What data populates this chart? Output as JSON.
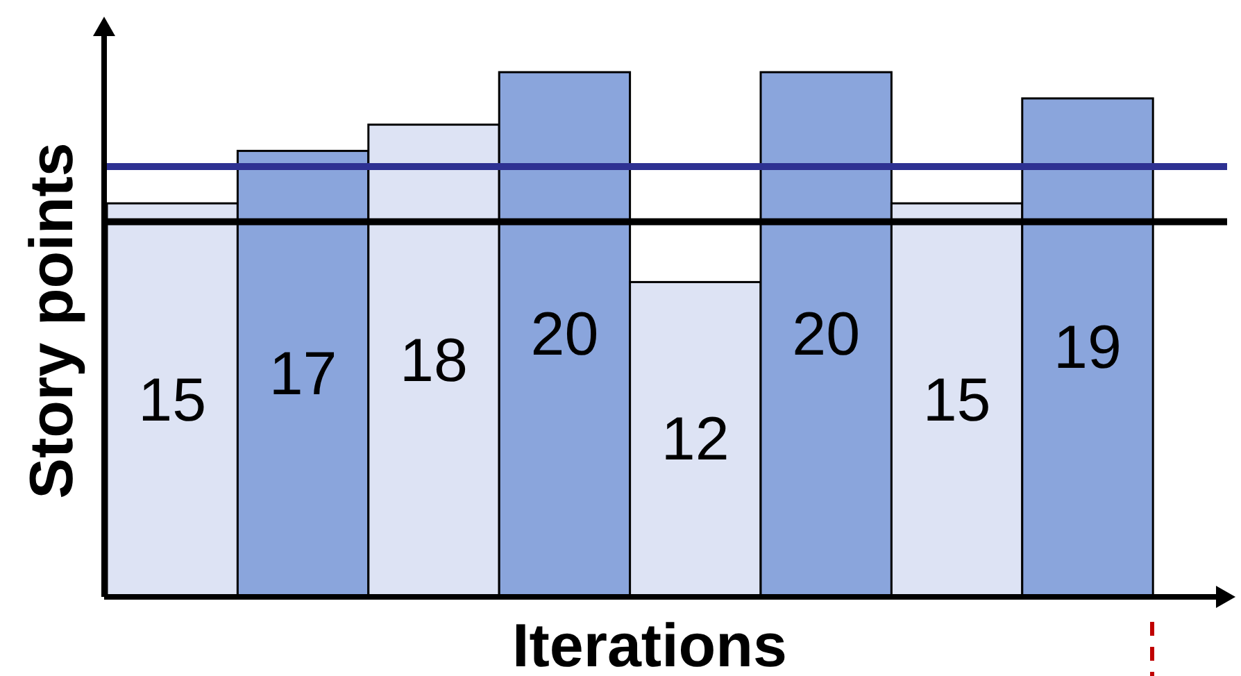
{
  "chart_data": {
    "type": "bar",
    "xlabel": "Iterations",
    "ylabel": "Story points",
    "categories": [
      null,
      null,
      null,
      null,
      null,
      null,
      null,
      null
    ],
    "values": [
      15,
      17,
      18,
      20,
      12,
      20,
      15,
      19
    ],
    "colors": [
      "#dde3f4",
      "#8aa5dc",
      "#dde3f4",
      "#8aa5dc",
      "#dde3f4",
      "#8aa5dc",
      "#dde3f4",
      "#8aa5dc"
    ],
    "data_labels": true,
    "ref_lines": [
      {
        "axis": "y",
        "value": 16.4,
        "color": "#2e3192"
      },
      {
        "axis": "y",
        "value": 14.3,
        "color": "#000000"
      }
    ]
  }
}
